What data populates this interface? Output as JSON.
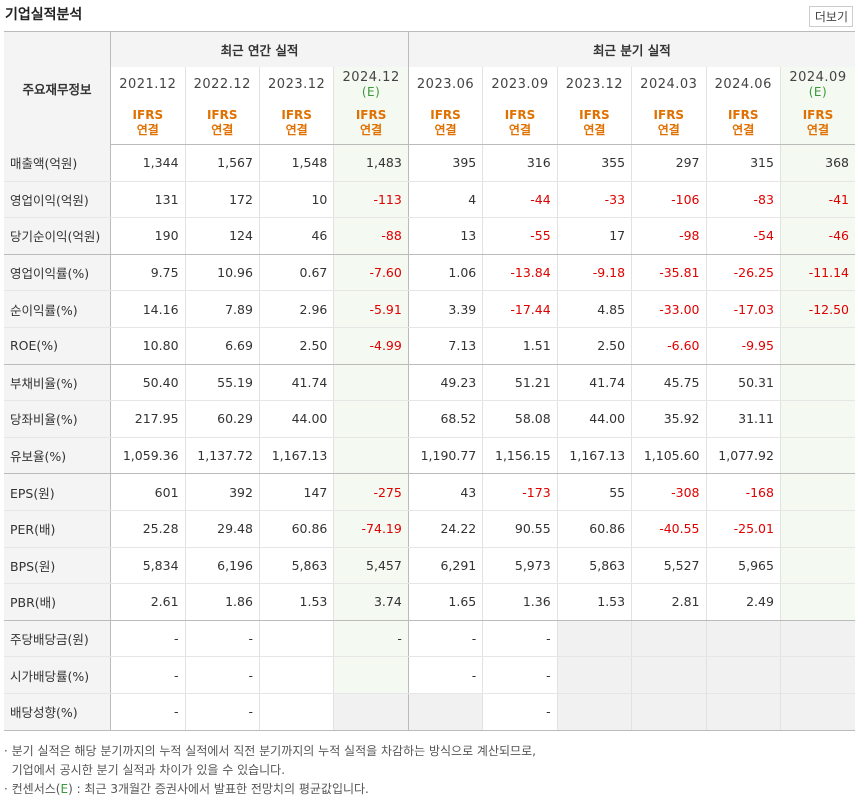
{
  "title": "기업실적분석",
  "more_label": "더보기",
  "header": {
    "label_col": "주요재무정보",
    "annual_group": "최근 연간 실적",
    "quarter_group": "최근 분기 실적",
    "annual_periods": [
      {
        "date": "2021.12",
        "est": ""
      },
      {
        "date": "2022.12",
        "est": ""
      },
      {
        "date": "2023.12",
        "est": ""
      },
      {
        "date": "2024.12",
        "est": "(E)"
      }
    ],
    "quarter_periods": [
      {
        "date": "2023.06",
        "est": ""
      },
      {
        "date": "2023.09",
        "est": ""
      },
      {
        "date": "2023.12",
        "est": ""
      },
      {
        "date": "2024.03",
        "est": ""
      },
      {
        "date": "2024.06",
        "est": ""
      },
      {
        "date": "2024.09",
        "est": "(E)"
      }
    ],
    "basis_line1": "IFRS",
    "basis_line2": "연결"
  },
  "rows": [
    {
      "label": "매출액(억원)",
      "values": [
        "1,344",
        "1,567",
        "1,548",
        "1,483",
        "395",
        "316",
        "355",
        "297",
        "315",
        "368"
      ]
    },
    {
      "label": "영업이익(억원)",
      "values": [
        "131",
        "172",
        "10",
        "-113",
        "4",
        "-44",
        "-33",
        "-106",
        "-83",
        "-41"
      ]
    },
    {
      "label": "당기순이익(억원)",
      "values": [
        "190",
        "124",
        "46",
        "-88",
        "13",
        "-55",
        "17",
        "-98",
        "-54",
        "-46"
      ]
    },
    {
      "label": "영업이익률(%)",
      "values": [
        "9.75",
        "10.96",
        "0.67",
        "-7.60",
        "1.06",
        "-13.84",
        "-9.18",
        "-35.81",
        "-26.25",
        "-11.14"
      ]
    },
    {
      "label": "순이익률(%)",
      "values": [
        "14.16",
        "7.89",
        "2.96",
        "-5.91",
        "3.39",
        "-17.44",
        "4.85",
        "-33.00",
        "-17.03",
        "-12.50"
      ]
    },
    {
      "label": "ROE(%)",
      "values": [
        "10.80",
        "6.69",
        "2.50",
        "-4.99",
        "7.13",
        "1.51",
        "2.50",
        "-6.60",
        "-9.95",
        ""
      ]
    },
    {
      "label": "부채비율(%)",
      "values": [
        "50.40",
        "55.19",
        "41.74",
        "",
        "49.23",
        "51.21",
        "41.74",
        "45.75",
        "50.31",
        ""
      ]
    },
    {
      "label": "당좌비율(%)",
      "values": [
        "217.95",
        "60.29",
        "44.00",
        "",
        "68.52",
        "58.08",
        "44.00",
        "35.92",
        "31.11",
        ""
      ]
    },
    {
      "label": "유보율(%)",
      "values": [
        "1,059.36",
        "1,137.72",
        "1,167.13",
        "",
        "1,190.77",
        "1,156.15",
        "1,167.13",
        "1,105.60",
        "1,077.92",
        ""
      ]
    },
    {
      "label": "EPS(원)",
      "values": [
        "601",
        "392",
        "147",
        "-275",
        "43",
        "-173",
        "55",
        "-308",
        "-168",
        ""
      ]
    },
    {
      "label": "PER(배)",
      "values": [
        "25.28",
        "29.48",
        "60.86",
        "-74.19",
        "24.22",
        "90.55",
        "60.86",
        "-40.55",
        "-25.01",
        ""
      ]
    },
    {
      "label": "BPS(원)",
      "values": [
        "5,834",
        "6,196",
        "5,863",
        "5,457",
        "6,291",
        "5,973",
        "5,863",
        "5,527",
        "5,965",
        ""
      ]
    },
    {
      "label": "PBR(배)",
      "values": [
        "2.61",
        "1.86",
        "1.53",
        "3.74",
        "1.65",
        "1.36",
        "1.53",
        "2.81",
        "2.49",
        ""
      ]
    },
    {
      "label": "주당배당금(원)",
      "values": [
        "-",
        "-",
        "",
        "-",
        "-",
        "-",
        "",
        "",
        "",
        ""
      ]
    },
    {
      "label": "시가배당률(%)",
      "values": [
        "-",
        "-",
        "",
        "",
        "-",
        "-",
        "",
        "",
        "",
        ""
      ]
    },
    {
      "label": "배당성향(%)",
      "values": [
        "-",
        "-",
        "",
        "",
        "",
        "-",
        "",
        "",
        "",
        ""
      ]
    }
  ],
  "notes": {
    "line1": "분기 실적은 해당 분기까지의 누적 실적에서 직전 분기까지의 누적 실적을 차감하는 방식으로 계산되므로,",
    "line2": "기업에서 공시한 분기 실적과 차이가 있을 수 있습니다.",
    "line3_prefix": "컨센서스(",
    "line3_e": "E",
    "line3_suffix": ") : 최근 3개월간 증권사에서 발표한 전망치의 평균값입니다."
  },
  "colors": {
    "negative": "#e00000",
    "basis": "#e07000",
    "estimate_mark": "#3a9a3a"
  }
}
